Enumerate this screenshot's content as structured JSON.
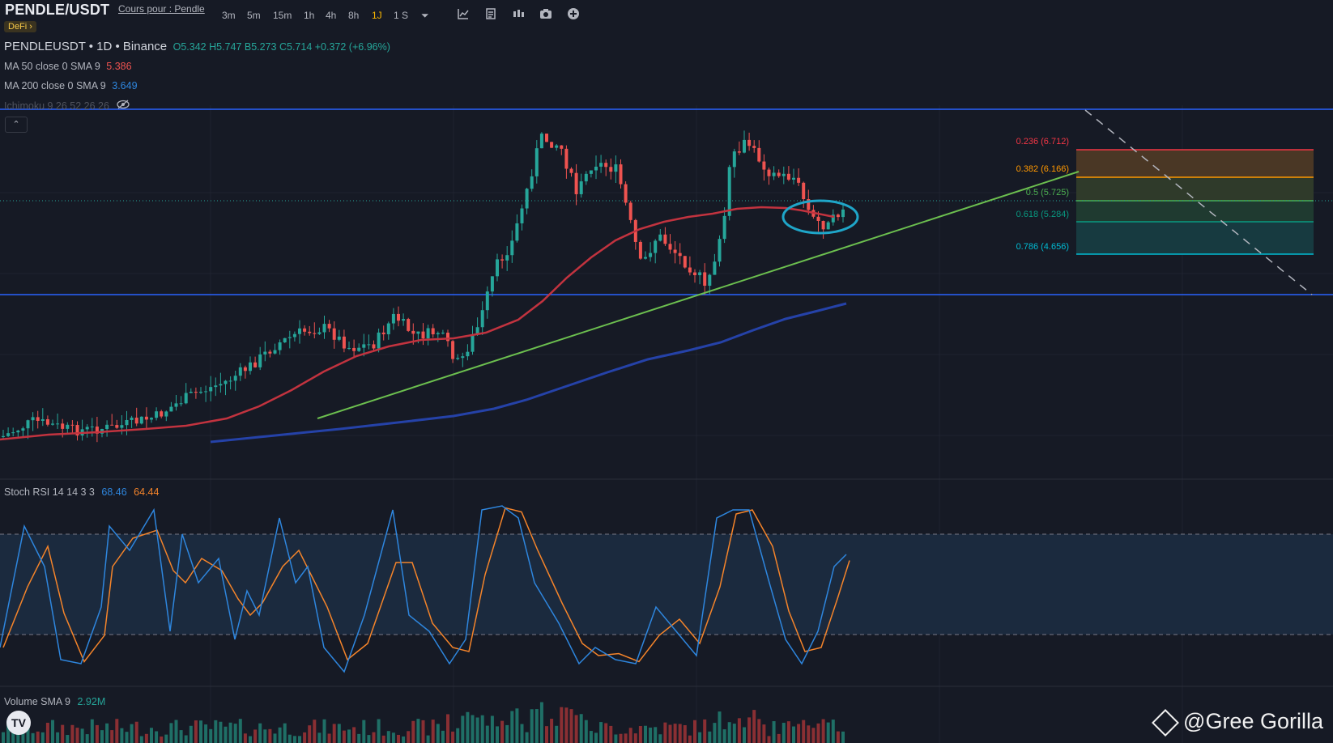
{
  "toolbar": {
    "symbol": "PENDLE/USDT",
    "cours_link": "Cours pour : Pendle",
    "category_badge": "DeFi ›",
    "timeframes": [
      "3m",
      "5m",
      "15m",
      "1h",
      "4h",
      "8h",
      "1J",
      "1 S"
    ],
    "active_timeframe": "1J",
    "dropdown_glyph": "⏷",
    "icons": [
      "indicators-icon",
      "templates-icon",
      "compare-icon",
      "camera-icon",
      "add-icon"
    ]
  },
  "legend": {
    "main_title": "PENDLEUSDT • 1D • Binance",
    "ohlc": "O5.342  H5.747  B5.273  C5.714  +0.372 (+6.96%)",
    "ma50_label": "MA 50 close 0 SMA 9",
    "ma50_value": "5.386",
    "ma200_label": "MA 200 close 0 SMA 9",
    "ma200_value": "3.649",
    "ichimoku_label": "Ichimoku 9 26 52 26 26",
    "collapse_glyph": "⌃"
  },
  "stoch": {
    "label": "Stoch RSI 14 14 3 3",
    "k_value": "68.46",
    "d_value": "64.44"
  },
  "volume": {
    "label": "Volume SMA 9",
    "value": "2.92M"
  },
  "watermark": "@Gree Gorilla",
  "logo_text": "TV",
  "colors": {
    "background": "#161a25",
    "up": "#26a69a",
    "down": "#ef5350",
    "ma50": "#c2333f",
    "ma200": "#2542a8",
    "trendline": "#6cbf4f",
    "level_lines": "#2962ff",
    "stoch_k": "#2e86de",
    "stoch_d": "#f5842a"
  },
  "chart_data": {
    "type": "candlestick",
    "fib_levels": [
      {
        "label": "0.236 (6.712)",
        "color": "#f23645"
      },
      {
        "label": "0.382 (6.166)",
        "color": "#ff9800"
      },
      {
        "label": "0.5 (5.725)",
        "color": "#4caf50"
      },
      {
        "label": "0.618 (5.284)",
        "color": "#089981"
      },
      {
        "label": "0.786 (4.656)",
        "color": "#00bcd4"
      }
    ]
  }
}
